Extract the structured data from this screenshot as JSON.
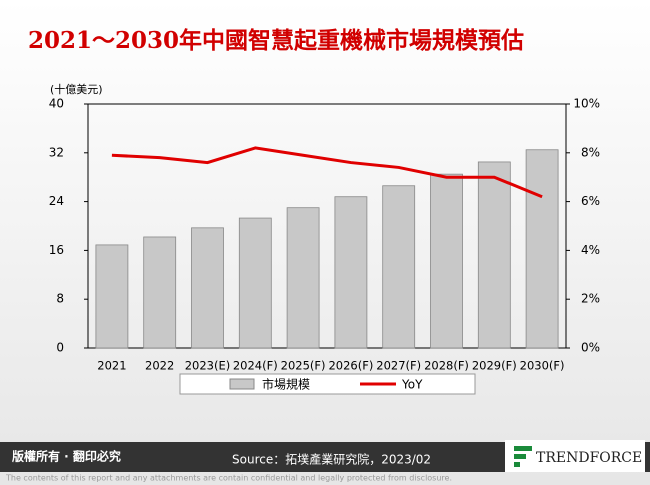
{
  "chart_data": {
    "type": "bar_line",
    "title": "2021～2030年中國智慧起重機械市場規模預估",
    "y_axis_label": "(十億美元)",
    "categories": [
      "2021",
      "2022",
      "2023(E)",
      "2024(F)",
      "2025(F)",
      "2026(F)",
      "2027(F)",
      "2028(F)",
      "2029(F)",
      "2030(F)"
    ],
    "series": [
      {
        "name": "市場規模",
        "type": "bar",
        "color": "#c8c8c8",
        "values": [
          16.9,
          18.2,
          19.7,
          21.3,
          23.0,
          24.8,
          26.6,
          28.5,
          30.5,
          32.5
        ]
      },
      {
        "name": "YoY",
        "type": "line",
        "axis": "y2",
        "color": "#e00000",
        "values": [
          7.9,
          7.8,
          7.6,
          8.2,
          7.9,
          7.6,
          7.4,
          7.0,
          7.0,
          6.2
        ]
      }
    ],
    "ylim": [
      0,
      40
    ],
    "yticks": [
      0,
      8,
      16,
      24,
      32,
      40
    ],
    "y2lim": [
      0,
      10
    ],
    "y2ticks": [
      {
        "value": 0,
        "label": "0%"
      },
      {
        "value": 2,
        "label": "2%"
      },
      {
        "value": 4,
        "label": "4%"
      },
      {
        "value": 6,
        "label": "6%"
      },
      {
        "value": 8,
        "label": "8%"
      },
      {
        "value": 10,
        "label": "10%"
      }
    ],
    "legend": "bottom"
  },
  "footer": {
    "rights": "版權所有 · 翻印必究",
    "source": "Source：拓墣產業研究院，2023/02",
    "logo": "TRENDFORCE",
    "disclaimer": "The contents of this report and any attachments are contain confidential and legally protected from disclosure."
  }
}
